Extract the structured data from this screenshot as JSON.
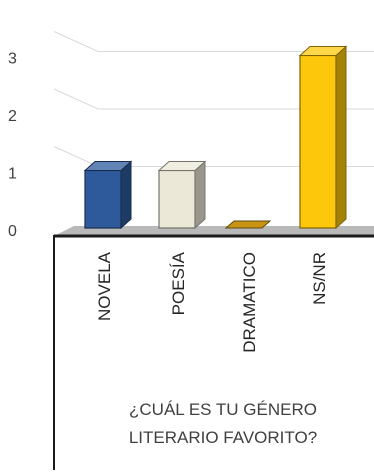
{
  "chart_data": {
    "type": "bar",
    "style": "3d-column",
    "categories": [
      "NOVELA",
      "POESÍA",
      "DRAMATICO",
      "NS/NR"
    ],
    "values": [
      1,
      1,
      0,
      3
    ],
    "colors": [
      "#2e5a9c",
      "#ebe8d7",
      "#c99414",
      "#fdc80c"
    ],
    "y_ticks": [
      0,
      1,
      2,
      3
    ],
    "ylim": [
      0,
      3
    ],
    "grid": true,
    "xlabel": "",
    "ylabel": "",
    "title": "",
    "category_axis_title": "¿CUÁL ES TU GÉNERO LITERARIO FAVORITO?"
  }
}
